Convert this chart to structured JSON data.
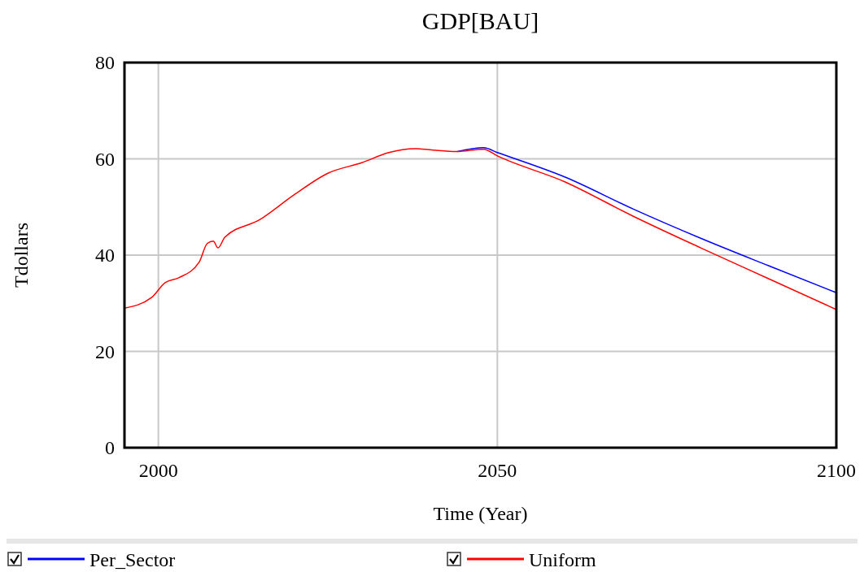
{
  "chart_data": {
    "type": "line",
    "title": "GDP[BAU]",
    "xlabel": "Time (Year)",
    "ylabel": "Tdollars",
    "xlim": [
      1995,
      2100
    ],
    "xticks": [
      2000,
      2050,
      2100
    ],
    "ylim": [
      0,
      80
    ],
    "yticks": [
      0,
      20,
      40,
      60,
      80
    ],
    "grid": true,
    "legend": "bottom",
    "line_style": "solid",
    "series": [
      {
        "name": "Per_Sector",
        "color": "#0000ff",
        "x": [
          2044,
          2048,
          2050,
          2060,
          2070,
          2080,
          2090,
          2100
        ],
        "values": [
          61.5,
          62.3,
          61.3,
          56.2,
          49.6,
          43.5,
          37.8,
          32.2
        ]
      },
      {
        "name": "Uniform",
        "color": "#ff0000",
        "x": [
          1995,
          1999,
          2001,
          2003,
          2006,
          2007.2,
          2008.1,
          2008.8,
          2009.8,
          2015,
          2020,
          2025,
          2030,
          2034,
          2038,
          2040,
          2044,
          2048,
          2050,
          2060,
          2070,
          2080,
          2090,
          2100
        ],
        "values": [
          29.0,
          31.2,
          34.3,
          35.3,
          38.5,
          42.4,
          42.9,
          41.5,
          43.7,
          47.4,
          52.5,
          57.0,
          59.2,
          61.3,
          62.1,
          61.9,
          61.5,
          62.0,
          60.6,
          55.2,
          48.1,
          41.5,
          35.1,
          28.7
        ]
      }
    ]
  }
}
